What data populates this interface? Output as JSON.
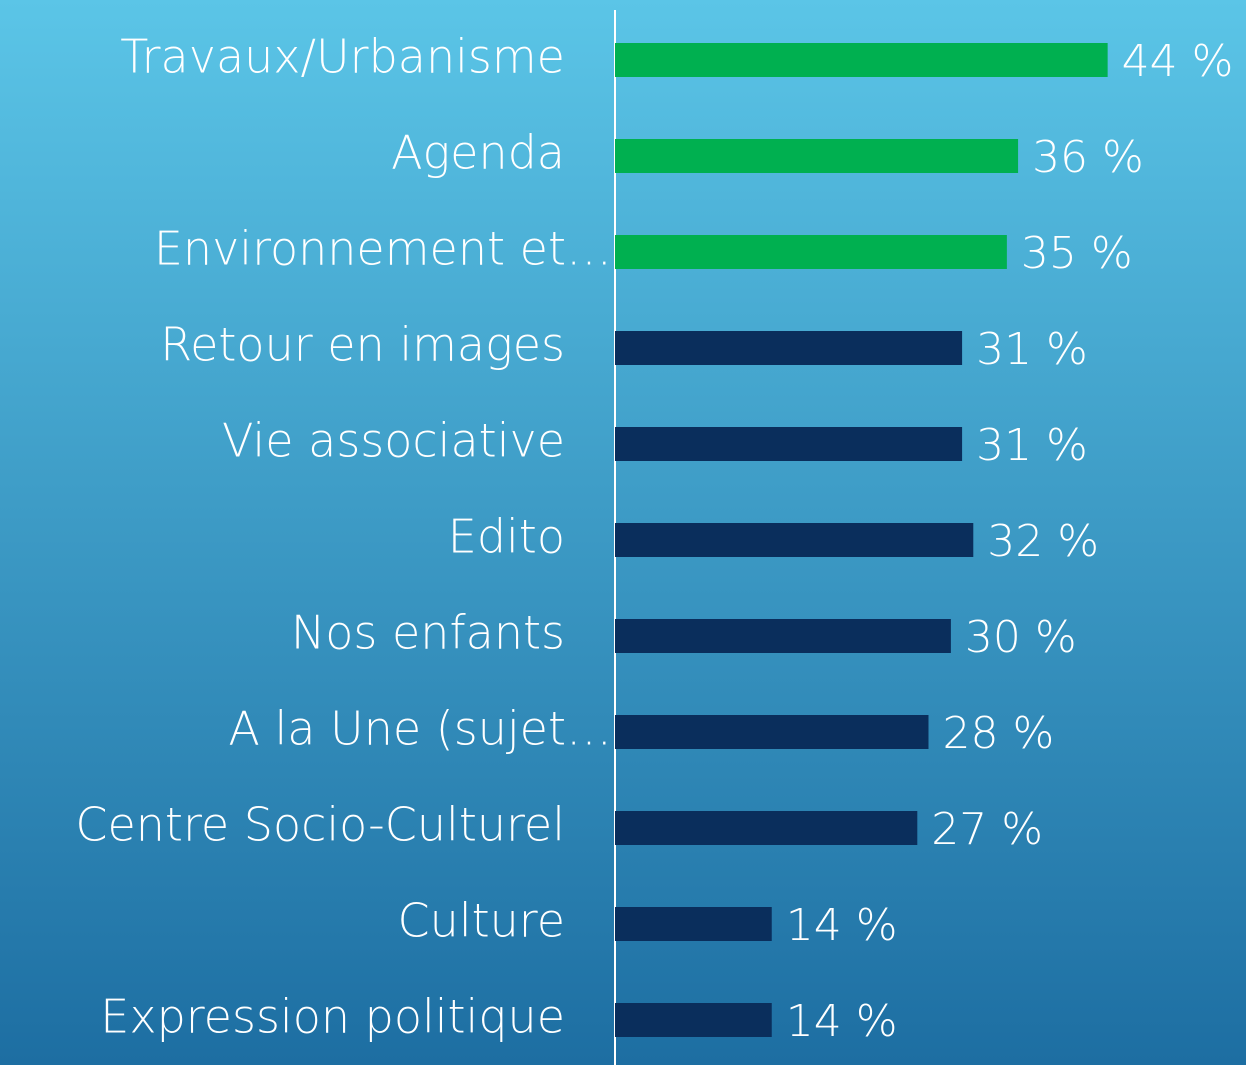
{
  "chart_data": {
    "type": "hbar",
    "categories": [
      "Travaux/Urbanisme",
      "Agenda",
      "Environnement et…",
      "Retour en images",
      "Vie associative",
      "Edito",
      "Nos enfants",
      "A la Une (sujet…",
      "Centre Socio-Culturel",
      "Culture",
      "Expression politique"
    ],
    "values": [
      44,
      36,
      35,
      31,
      31,
      32,
      30,
      28,
      27,
      14,
      14
    ],
    "value_labels": [
      "44 %",
      "36 %",
      "35 %",
      "31 %",
      "31 %",
      "32 %",
      "30 %",
      "28 %",
      "27 %",
      "14 %",
      "14 %"
    ],
    "colors": [
      "#00b050",
      "#00b050",
      "#00b050",
      "#0a2e5c",
      "#0a2e5c",
      "#0a2e5c",
      "#0a2e5c",
      "#0a2e5c",
      "#0a2e5c",
      "#0a2e5c",
      "#0a2e5c"
    ],
    "xlim": [
      0,
      56
    ]
  }
}
